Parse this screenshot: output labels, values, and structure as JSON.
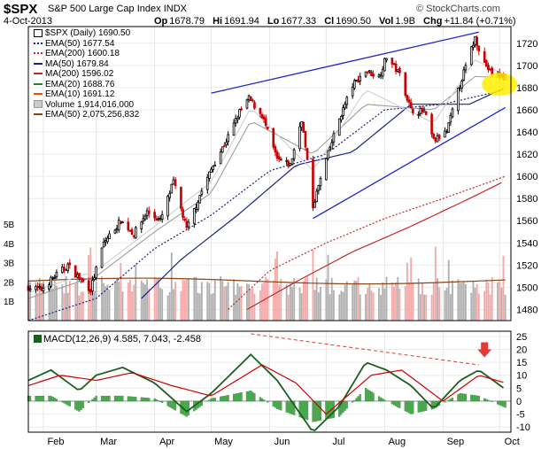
{
  "header": {
    "ticker": "$SPX",
    "name": "S&P 500 Large Cap Index",
    "exchange": "INDX",
    "stamp": "© StockCharts.com",
    "date": "4-Oct-2013",
    "open_label": "Op",
    "open": "1678.79",
    "high_label": "Hi",
    "high": "1691.94",
    "low_label": "Lo",
    "low": "1677.33",
    "close_label": "Cl",
    "close": "1690.50",
    "vol_label": "Vol",
    "vol": "1.9B",
    "chg_label": "Chg",
    "chg": "+11.84 (+0.71%)"
  },
  "legend": [
    {
      "text": "$SPX (Daily) 1690.50",
      "color": "#000000",
      "style": "candle"
    },
    {
      "text": "EMA(50) 1677.54",
      "color": "#1a237e",
      "style": "dotted"
    },
    {
      "text": "EMA(200) 1600.18",
      "color": "#c62828",
      "style": "dotted"
    },
    {
      "text": "MA(50) 1679.84",
      "color": "#1a237e",
      "style": "solid"
    },
    {
      "text": "MA(200) 1596.02",
      "color": "#c62828",
      "style": "solid"
    },
    {
      "text": "EMA(20) 1688.76",
      "color": "#2e7d32",
      "style": "solid"
    },
    {
      "text": "EMA(10) 1691.12",
      "color": "#e65100",
      "style": "solid"
    },
    {
      "text": "Volume 1,914,016,000",
      "color": "#999999",
      "style": "box"
    },
    {
      "text": "EMA(50) 2,075,256,832",
      "color": "#8b4513",
      "style": "solid"
    }
  ],
  "macd_title": "MACD(12,26,9) 4.585, 7.043, -2.458",
  "colors": {
    "up_candle": "#000000",
    "down_candle": "#cc0000",
    "trendline": "#2222cc",
    "macd": "#1b5e20",
    "signal": "#cc0000",
    "hist": "#4caf50",
    "highlight": "#ffee00",
    "arrow": "#e53935",
    "vol_up": "#b0b0b0",
    "vol_down": "#f4a8a8"
  },
  "chart_data": [
    {
      "type": "candlestick",
      "title": "$SPX (Daily) 1690.50",
      "x_tick_labels": [
        "Feb",
        "Mar",
        "Apr",
        "May",
        "Jun",
        "Jul",
        "Aug",
        "Sep",
        "Oct"
      ],
      "y_tick_labels": [
        "1480",
        "1500",
        "1520",
        "1540",
        "1560",
        "1580",
        "1600",
        "1620",
        "1640",
        "1660",
        "1680",
        "1700",
        "1720"
      ],
      "ylim": [
        1470,
        1735
      ],
      "volume_tick_labels": [
        "1B",
        "2B",
        "3B",
        "4B",
        "5B"
      ],
      "close_path": {
        "dates": [
          "2013-01-24",
          "2013-01-31",
          "2013-02-07",
          "2013-02-14",
          "2013-02-20",
          "2013-02-26",
          "2013-03-05",
          "2013-03-14",
          "2013-03-21",
          "2013-03-28",
          "2013-04-04",
          "2013-04-11",
          "2013-04-18",
          "2013-04-25",
          "2013-05-02",
          "2013-05-09",
          "2013-05-16",
          "2013-05-21",
          "2013-05-28",
          "2013-06-05",
          "2013-06-12",
          "2013-06-18",
          "2013-06-24",
          "2013-07-01",
          "2013-07-08",
          "2013-07-15",
          "2013-07-22",
          "2013-07-29",
          "2013-08-02",
          "2013-08-09",
          "2013-08-15",
          "2013-08-22",
          "2013-08-27",
          "2013-09-03",
          "2013-09-10",
          "2013-09-18",
          "2013-09-23",
          "2013-09-27",
          "2013-10-04"
        ],
        "close": [
          1500,
          1498,
          1510,
          1520,
          1508,
          1498,
          1540,
          1560,
          1548,
          1568,
          1560,
          1595,
          1552,
          1583,
          1610,
          1632,
          1658,
          1670,
          1655,
          1615,
          1610,
          1652,
          1573,
          1615,
          1652,
          1682,
          1695,
          1690,
          1708,
          1692,
          1660,
          1658,
          1632,
          1640,
          1683,
          1725,
          1702,
          1692,
          1690
        ]
      },
      "series": [
        {
          "name": "EMA(50)",
          "dates": [
            "2013-01-24",
            "2013-03-01",
            "2013-04-01",
            "2013-05-01",
            "2013-06-01",
            "2013-07-01",
            "2013-08-01",
            "2013-09-01",
            "2013-10-04"
          ],
          "values": [
            1470,
            1490,
            1535,
            1565,
            1605,
            1620,
            1660,
            1665,
            1678
          ]
        },
        {
          "name": "EMA(200)",
          "dates": [
            "2013-05-10",
            "2013-06-01",
            "2013-07-01",
            "2013-08-01",
            "2013-09-01",
            "2013-10-04"
          ],
          "values": [
            1480,
            1515,
            1540,
            1562,
            1580,
            1600
          ]
        },
        {
          "name": "MA(50)",
          "dates": [
            "2013-03-25",
            "2013-04-15",
            "2013-05-15",
            "2013-06-15",
            "2013-07-15",
            "2013-08-15",
            "2013-09-15",
            "2013-10-04"
          ],
          "values": [
            1490,
            1525,
            1565,
            1610,
            1622,
            1665,
            1665,
            1680
          ]
        },
        {
          "name": "MA(200)",
          "dates": [
            "2013-05-20",
            "2013-06-15",
            "2013-07-15",
            "2013-08-15",
            "2013-09-15",
            "2013-10-04"
          ],
          "values": [
            1480,
            1505,
            1532,
            1555,
            1580,
            1596
          ]
        },
        {
          "name": "EMA(20)",
          "dates": [
            "2013-01-24",
            "2013-03-01",
            "2013-04-01",
            "2013-05-01",
            "2013-05-22",
            "2013-06-24",
            "2013-07-22",
            "2013-08-27",
            "2013-09-18",
            "2013-10-04"
          ],
          "values": [
            1490,
            1510,
            1550,
            1585,
            1650,
            1620,
            1665,
            1660,
            1690,
            1689
          ]
        },
        {
          "name": "EMA(10)",
          "dates": [
            "2013-01-24",
            "2013-03-01",
            "2013-04-01",
            "2013-05-01",
            "2013-05-22",
            "2013-06-24",
            "2013-07-22",
            "2013-08-27",
            "2013-09-18",
            "2013-10-04"
          ],
          "values": [
            1495,
            1515,
            1555,
            1595,
            1662,
            1605,
            1678,
            1648,
            1705,
            1691
          ]
        }
      ],
      "trendlines": [
        {
          "name": "upper",
          "dates": [
            "2013-05-01",
            "2013-09-20"
          ],
          "values": [
            1675,
            1730
          ]
        },
        {
          "name": "lower",
          "dates": [
            "2013-06-24",
            "2013-10-04"
          ],
          "values": [
            1562,
            1662
          ]
        }
      ]
    },
    {
      "type": "line",
      "title": "MACD(12,26,9) 4.585, 7.043, -2.458",
      "x_tick_labels": [
        "Feb",
        "Mar",
        "Apr",
        "May",
        "Jun",
        "Jul",
        "Aug",
        "Sep",
        "Oct"
      ],
      "y_tick_labels": [
        "-10",
        "-5",
        "0",
        "5",
        "10",
        "15",
        "20",
        "25"
      ],
      "ylim": [
        -12,
        27
      ],
      "series": [
        {
          "name": "MACD",
          "dates": [
            "2013-01-24",
            "2013-02-05",
            "2013-02-20",
            "2013-03-01",
            "2013-03-15",
            "2013-04-01",
            "2013-04-18",
            "2013-05-01",
            "2013-05-22",
            "2013-06-05",
            "2013-06-24",
            "2013-07-08",
            "2013-07-22",
            "2013-08-02",
            "2013-08-15",
            "2013-08-27",
            "2013-09-10",
            "2013-09-20",
            "2013-10-04"
          ],
          "values": [
            8,
            12,
            4,
            10,
            13,
            7,
            -4,
            3,
            18,
            8,
            -12,
            -2,
            15,
            12,
            6,
            -3,
            8,
            12,
            4.6
          ]
        },
        {
          "name": "Signal",
          "dates": [
            "2013-01-24",
            "2013-02-10",
            "2013-03-01",
            "2013-03-20",
            "2013-04-10",
            "2013-05-01",
            "2013-05-28",
            "2013-06-15",
            "2013-07-01",
            "2013-07-25",
            "2013-08-10",
            "2013-09-01",
            "2013-09-20",
            "2013-10-04"
          ],
          "values": [
            6,
            10,
            8,
            11,
            6,
            2,
            14,
            7,
            -5,
            10,
            12,
            0,
            10,
            7
          ]
        },
        {
          "name": "Histogram",
          "dates": [
            "2013-01-24",
            "2013-02-05",
            "2013-02-20",
            "2013-03-01",
            "2013-03-15",
            "2013-04-01",
            "2013-04-18",
            "2013-05-01",
            "2013-05-22",
            "2013-06-05",
            "2013-06-24",
            "2013-07-08",
            "2013-07-22",
            "2013-08-02",
            "2013-08-15",
            "2013-08-27",
            "2013-09-10",
            "2013-09-20",
            "2013-10-04"
          ],
          "values": [
            2,
            2,
            -4,
            2,
            2,
            1,
            -6,
            1,
            4,
            -3,
            -8,
            -6,
            5,
            0,
            -5,
            -3,
            3,
            2,
            -2.5
          ]
        }
      ],
      "trendlines": [
        {
          "name": "divergence",
          "dates": [
            "2013-05-22",
            "2013-09-20"
          ],
          "values": [
            26,
            14
          ]
        }
      ]
    }
  ]
}
